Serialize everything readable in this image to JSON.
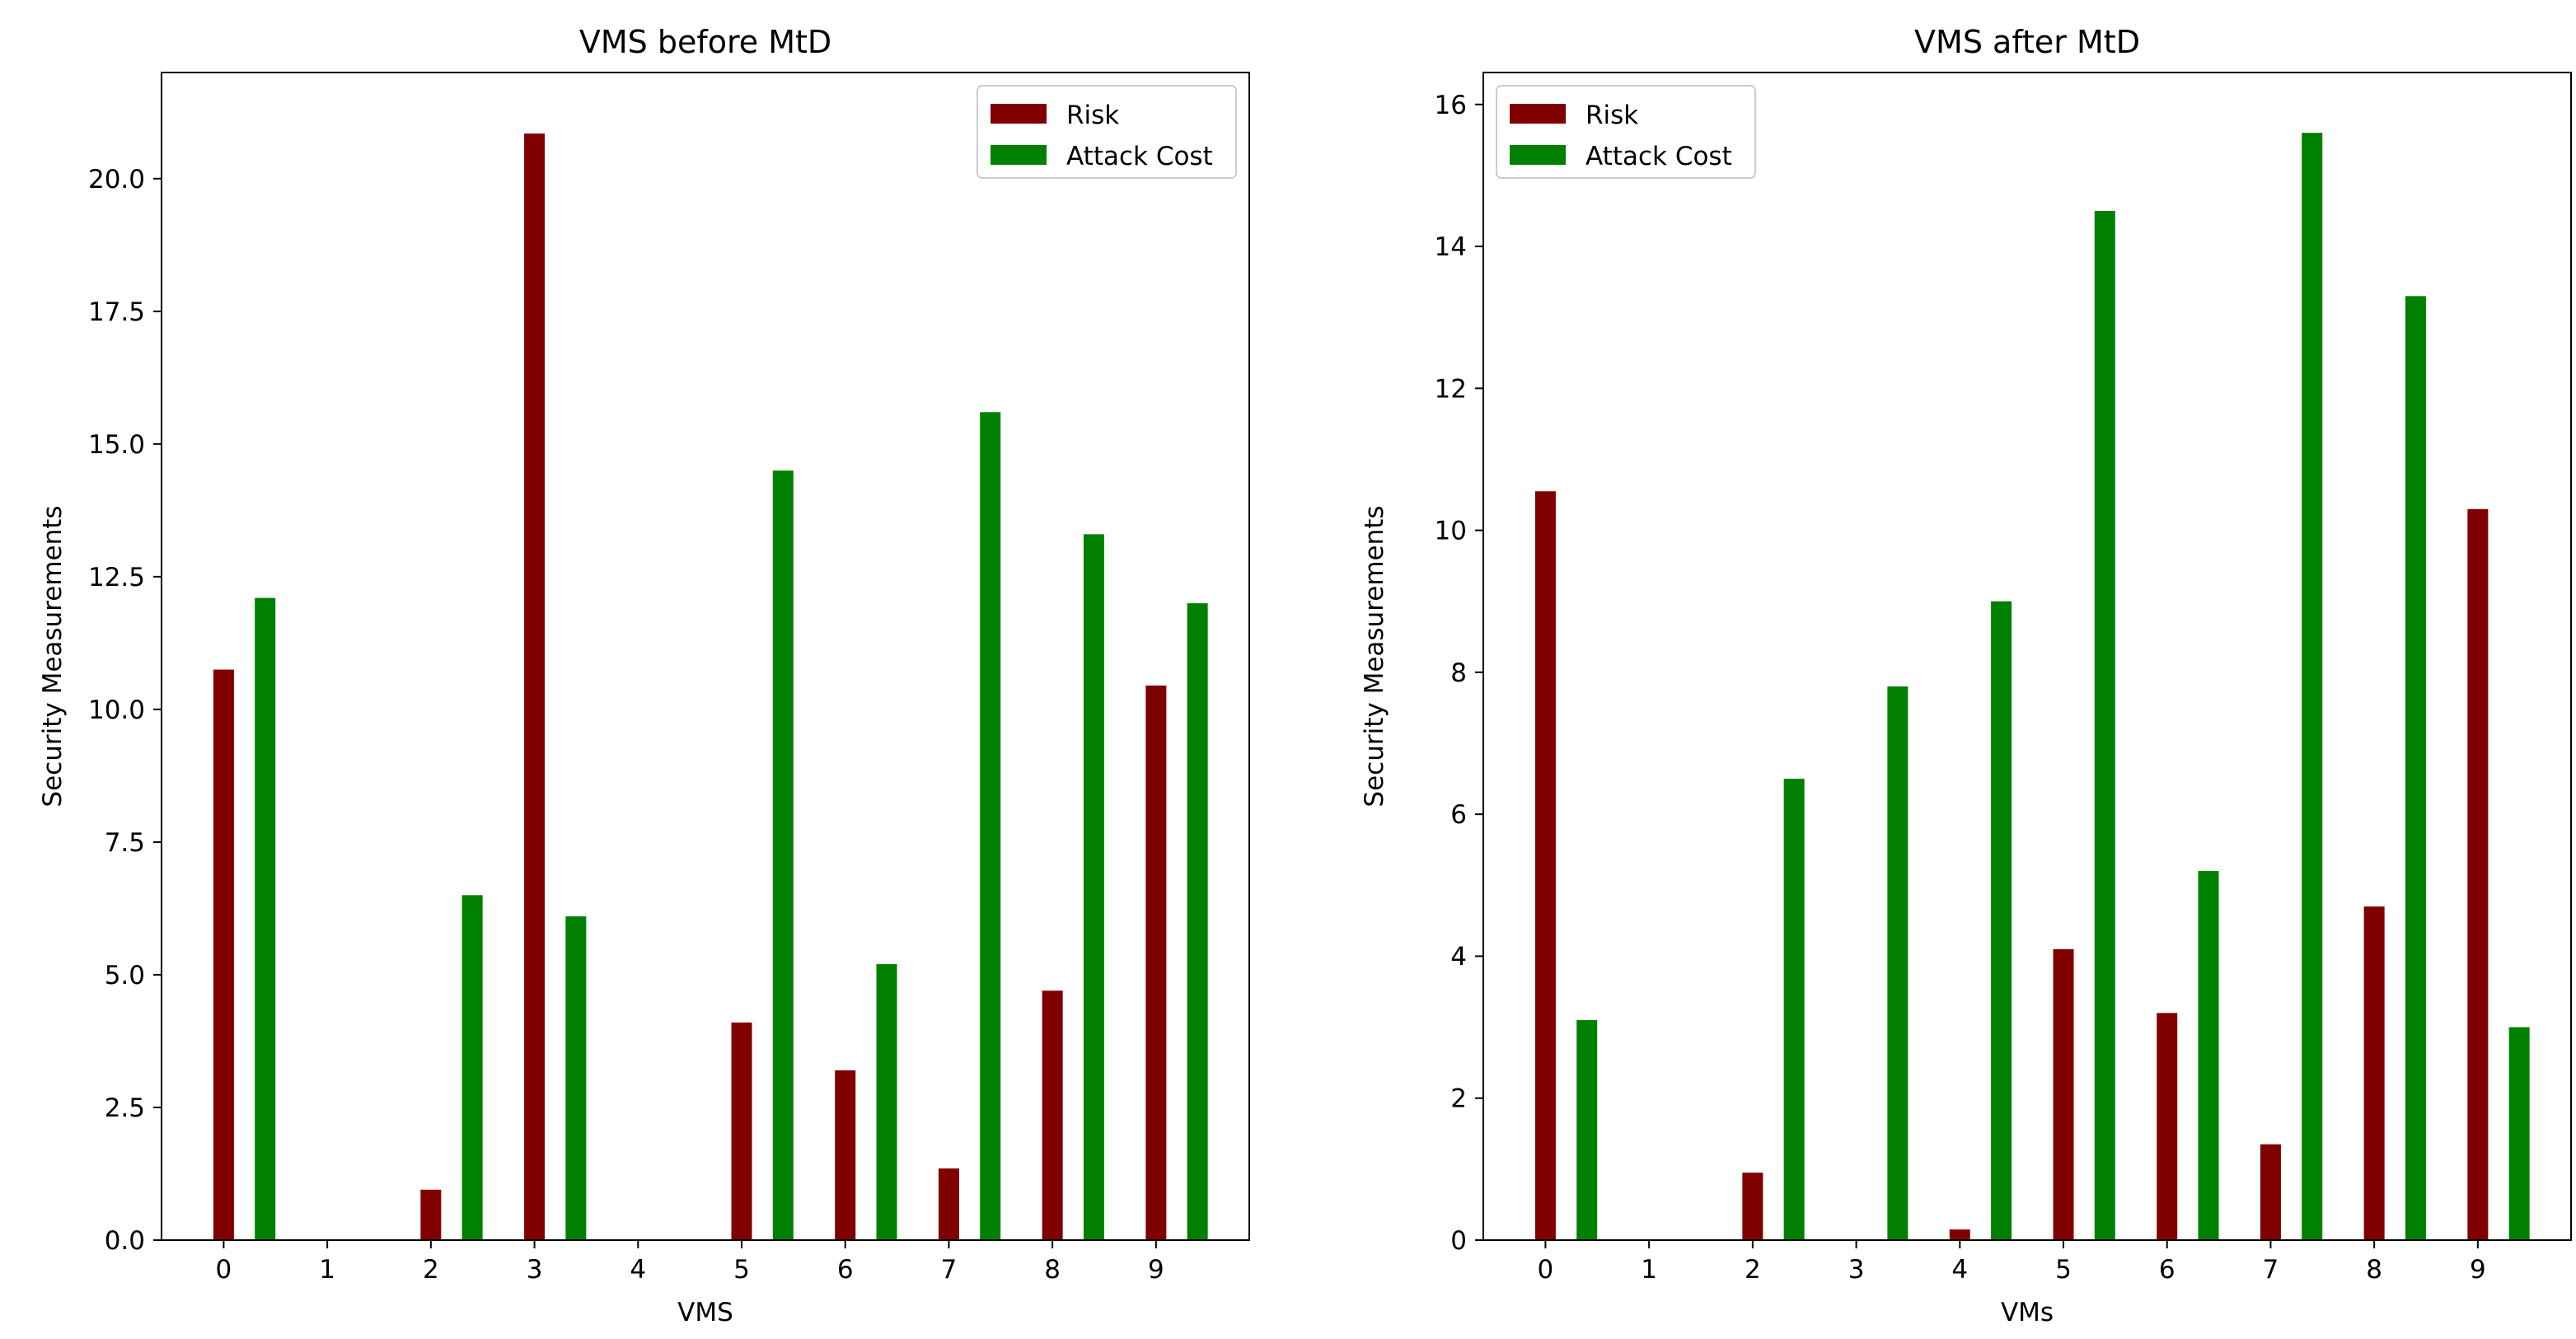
{
  "chart_data": [
    {
      "type": "bar",
      "title": "VMS before MtD",
      "xlabel": "VMS",
      "ylabel": "Security Measurements",
      "categories": [
        "0",
        "1",
        "2",
        "3",
        "4",
        "5",
        "6",
        "7",
        "8",
        "9"
      ],
      "ylim": [
        0,
        22.0
      ],
      "yticks": [
        0.0,
        2.5,
        5.0,
        7.5,
        10.0,
        12.5,
        15.0,
        17.5,
        20.0
      ],
      "ytick_labels": [
        "0.0",
        "2.5",
        "5.0",
        "7.5",
        "10.0",
        "12.5",
        "15.0",
        "17.5",
        "20.0"
      ],
      "legend_position": "top-right",
      "series": [
        {
          "name": "Risk",
          "color": "#800000",
          "values": [
            10.75,
            0,
            0.95,
            20.85,
            0,
            4.1,
            3.2,
            1.35,
            4.7,
            10.45
          ]
        },
        {
          "name": "Attack Cost",
          "color": "#008000",
          "values": [
            12.1,
            0,
            6.5,
            6.1,
            0,
            14.5,
            5.2,
            15.6,
            13.3,
            12.0
          ]
        }
      ]
    },
    {
      "type": "bar",
      "title": "VMS after MtD",
      "xlabel": "VMs",
      "ylabel": "Security Measurements",
      "categories": [
        "0",
        "1",
        "2",
        "3",
        "4",
        "5",
        "6",
        "7",
        "8",
        "9"
      ],
      "ylim": [
        0,
        16.45
      ],
      "yticks": [
        0,
        2,
        4,
        6,
        8,
        10,
        12,
        14,
        16
      ],
      "ytick_labels": [
        "0",
        "2",
        "4",
        "6",
        "8",
        "10",
        "12",
        "14",
        "16"
      ],
      "legend_position": "top-left",
      "series": [
        {
          "name": "Risk",
          "color": "#800000",
          "values": [
            10.55,
            0,
            0.95,
            0,
            0.15,
            4.1,
            3.2,
            1.35,
            4.7,
            10.3
          ]
        },
        {
          "name": "Attack Cost",
          "color": "#008000",
          "values": [
            3.1,
            0,
            6.5,
            7.8,
            9.0,
            14.5,
            5.2,
            15.6,
            13.3,
            3.0
          ]
        }
      ]
    }
  ]
}
